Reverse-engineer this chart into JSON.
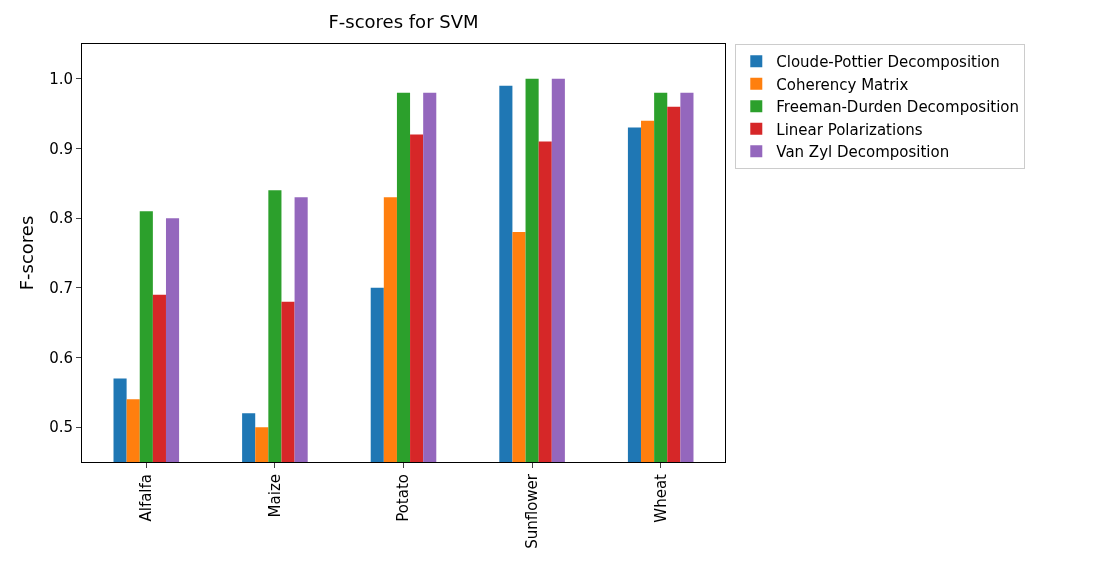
{
  "chart_data": {
    "type": "bar",
    "title": "F-scores for SVM",
    "ylabel": "F-scores",
    "categories": [
      "Alfalfa",
      "Maize",
      "Potato",
      "Sunflower",
      "Wheat"
    ],
    "series": [
      {
        "name": "Cloude-Pottier Decomposition",
        "color": "#1f77b4",
        "values": [
          0.57,
          0.52,
          0.7,
          0.99,
          0.93
        ]
      },
      {
        "name": "Coherency Matrix",
        "color": "#ff7f0e",
        "values": [
          0.54,
          0.5,
          0.83,
          0.78,
          0.94
        ]
      },
      {
        "name": "Freeman-Durden Decomposition",
        "color": "#2ca02c",
        "values": [
          0.81,
          0.84,
          0.98,
          1.0,
          0.98
        ]
      },
      {
        "name": "Linear Polarizations",
        "color": "#d62728",
        "values": [
          0.69,
          0.68,
          0.92,
          0.91,
          0.96
        ]
      },
      {
        "name": "Van Zyl Decomposition",
        "color": "#9467bd",
        "values": [
          0.8,
          0.83,
          0.98,
          1.0,
          0.98
        ]
      }
    ],
    "ylim": [
      0.45,
      1.05
    ],
    "yticks": [
      0.5,
      0.6,
      0.7,
      0.8,
      0.9,
      {
        "value": 1,
        "label": "1.0"
      }
    ],
    "legend": "top right"
  }
}
